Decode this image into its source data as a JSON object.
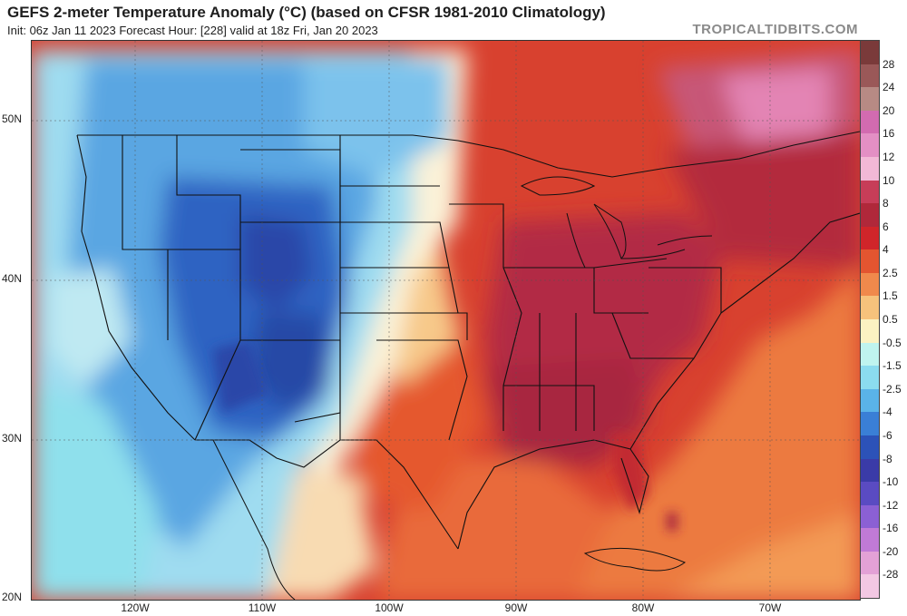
{
  "header": {
    "title": "GEFS 2-meter Temperature Anomaly (°C) (based on CFSR 1981-2010 Climatology)",
    "subtitle": "Init: 06z Jan 11 2023   Forecast Hour: [228]   valid at 18z Fri, Jan 20 2023",
    "brand": "TROPICALTIDBITS.COM"
  },
  "axes": {
    "lat_labels": [
      "50N",
      "40N",
      "30N",
      "20N"
    ],
    "lon_labels": [
      "120W",
      "110W",
      "100W",
      "90W",
      "80W",
      "70W"
    ]
  },
  "colorbar": {
    "labels": [
      "28",
      "24",
      "20",
      "16",
      "12",
      "10",
      "8",
      "6",
      "4",
      "2.5",
      "1.5",
      "0.5",
      "-0.5",
      "-1.5",
      "-2.5",
      "-4",
      "-6",
      "-8",
      "-10",
      "-12",
      "-16",
      "-20",
      "-28"
    ],
    "colors": [
      "#7a3a3a",
      "#9a5858",
      "#b78a84",
      "#d26bb0",
      "#e38fc4",
      "#f2b8d6",
      "#c73d58",
      "#b0283a",
      "#d0252a",
      "#e35530",
      "#f0894c",
      "#f6c27c",
      "#fbf2c2",
      "#bff4ef",
      "#8bdcef",
      "#5ab3e8",
      "#3a7fd6",
      "#2c52b8",
      "#3a3ba8",
      "#5a4bc2",
      "#8b60d4",
      "#c07ad6",
      "#e3a1d6",
      "#f3c8e3"
    ]
  }
}
